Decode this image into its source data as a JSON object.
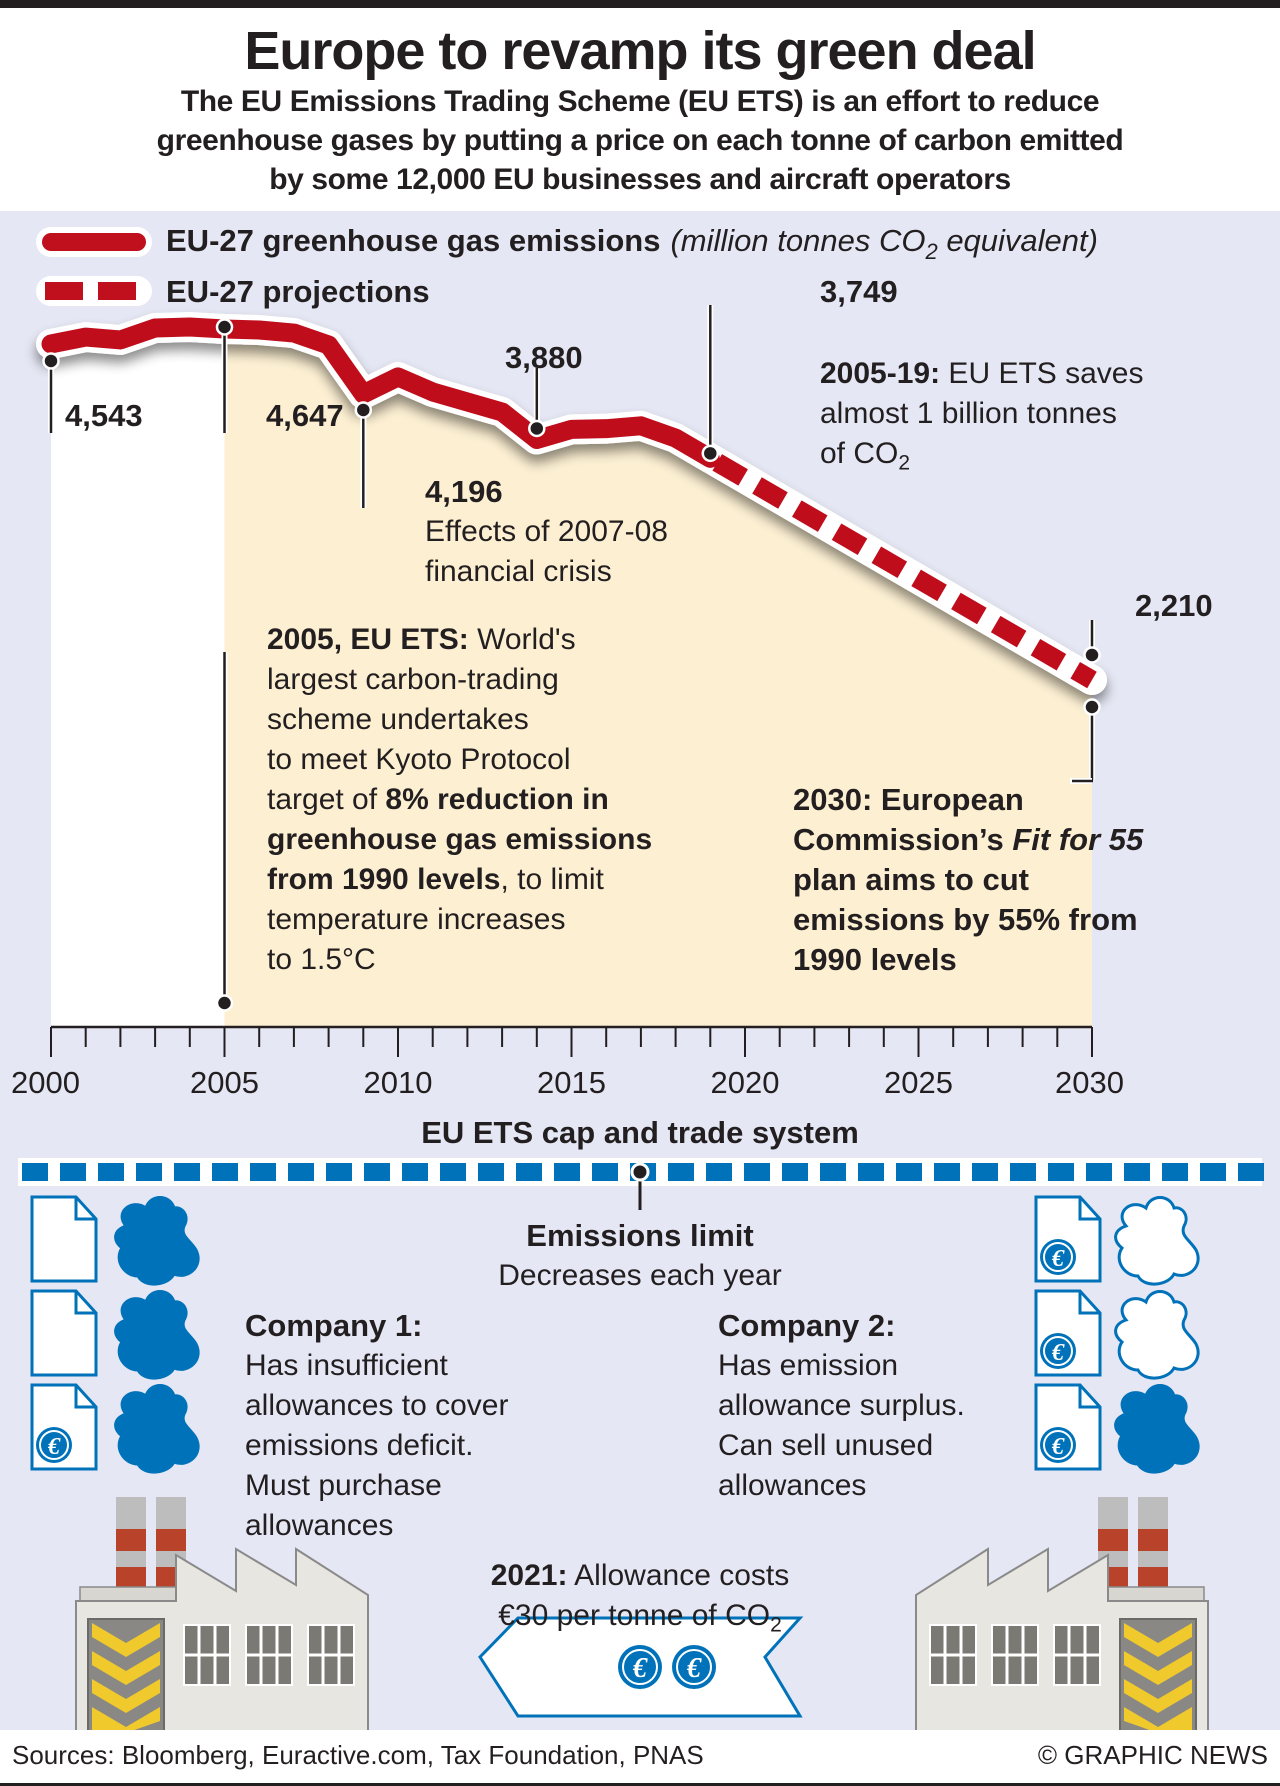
{
  "header": {
    "title": "Europe to revamp its green deal",
    "subtitle_lines": [
      "The EU Emissions Trading Scheme (EU ETS) is an effort to reduce",
      "greenhouse gases by putting a price on each tonne of carbon emitted",
      "by some 12,000 EU businesses and aircraft operators"
    ]
  },
  "colors": {
    "panel_bg": "#e5e7f4",
    "line_red": "#c0101e",
    "area_fill": "#fcefd2",
    "pre_ets_fill": "#ffffff",
    "blue": "#0072b9",
    "text": "#231f20"
  },
  "chart_data": {
    "type": "line",
    "title": "EU-27 greenhouse gas emissions",
    "unit": "million tonnes CO2 equivalent",
    "xlabel": "",
    "ylabel": "",
    "legend": [
      {
        "label": "EU-27 greenhouse gas emissions",
        "unit_label": "(million tonnes CO",
        "unit_sub": "2",
        "unit_tail": " equivalent)",
        "style": "solid"
      },
      {
        "label": "EU-27 projections",
        "style": "dashed"
      }
    ],
    "legend_position": "top-left",
    "x_range": [
      2000,
      2030
    ],
    "x_ticks": [
      2000,
      2005,
      2010,
      2015,
      2020,
      2025,
      2030
    ],
    "y_range": [
      2210,
      4661
    ],
    "grid": false,
    "series": [
      {
        "name": "EU-27 greenhouse gas emissions",
        "style": "solid",
        "x": [
          2000,
          2001,
          2002,
          2003,
          2004,
          2005,
          2006,
          2007,
          2008,
          2009,
          2010,
          2011,
          2012,
          2013,
          2014,
          2015,
          2016,
          2017,
          2018,
          2019
        ],
        "values": [
          4543,
          4591,
          4571,
          4654,
          4661,
          4647,
          4640,
          4619,
          4536,
          4196,
          4314,
          4210,
          4140,
          4071,
          3880,
          3950,
          3955,
          3975,
          3890,
          3749
        ]
      },
      {
        "name": "EU-27 projections",
        "style": "dashed",
        "x": [
          2019,
          2030
        ],
        "values": [
          3749,
          2210
        ]
      }
    ],
    "shaded_region": {
      "from": 2005,
      "to": 2030,
      "label": "EU ETS period"
    },
    "annotations": [
      {
        "id": "a2000",
        "year": 2000,
        "value_label": "4,543"
      },
      {
        "id": "a2005",
        "year": 2005,
        "value_label": "4,647"
      },
      {
        "id": "a2009",
        "year": 2009,
        "value_label": "4,196",
        "note_lines": [
          "Effects of 2007-08",
          "financial crisis"
        ]
      },
      {
        "id": "a2014",
        "year": 2014,
        "value_label": "3,880"
      },
      {
        "id": "a2019",
        "year": 2019,
        "value_label": "3,749"
      },
      {
        "id": "a2030",
        "year": 2030,
        "value_label": "2,210"
      }
    ]
  },
  "notes": {
    "ets_2005_19": {
      "bold": "2005-19:",
      "text1": " EU ETS saves",
      "text2": "almost 1 billion tonnes",
      "text3": "of CO",
      "sub": "2"
    },
    "ets_2005": {
      "bold": "2005, EU ETS:",
      "l1": " World's",
      "l2": "largest carbon-trading",
      "l3": "scheme undertakes",
      "l4": "to meet Kyoto Protocol",
      "l5a": "target of ",
      "l5b": "8% reduction in",
      "l6": "greenhouse gas emissions",
      "l7a": "from 1990 levels",
      "l7b": ", to limit",
      "l8": "temperature increases",
      "l9": "to 1.5°C"
    },
    "fit55": {
      "l1": "2030: European",
      "l2a": "Commission’s ",
      "l2b": "Fit for 55",
      "l3": "plan aims to cut",
      "l4": "emissions by 55% from",
      "l5": "1990 levels"
    }
  },
  "cap_trade": {
    "heading": "EU ETS cap and trade system",
    "limit_title": "Emissions limit",
    "limit_sub": "Decreases each year",
    "company1": {
      "title": "Company 1:",
      "lines": [
        "Has insufficient",
        "allowances to cover",
        "emissions deficit.",
        "Must purchase",
        "allowances"
      ],
      "allowances": [
        {
          "paid": false,
          "cloud_filled": true
        },
        {
          "paid": false,
          "cloud_filled": true
        },
        {
          "paid": true,
          "cloud_filled": true
        }
      ]
    },
    "company2": {
      "title": "Company 2:",
      "lines": [
        "Has emission",
        "allowance surplus.",
        "Can sell unused",
        "allowances"
      ],
      "allowances": [
        {
          "paid": true,
          "cloud_filled": false
        },
        {
          "paid": true,
          "cloud_filled": false
        },
        {
          "paid": true,
          "cloud_filled": true
        }
      ]
    },
    "price_bold": "2021:",
    "price_text1": " Allowance costs",
    "price_text2": "€30 per tonne of CO",
    "price_sub": "2",
    "euro_symbol": "€"
  },
  "footer": {
    "sources": "Sources: Bloomberg, Euractive.com, Tax Foundation, PNAS",
    "copyright": "© GRAPHIC NEWS"
  }
}
